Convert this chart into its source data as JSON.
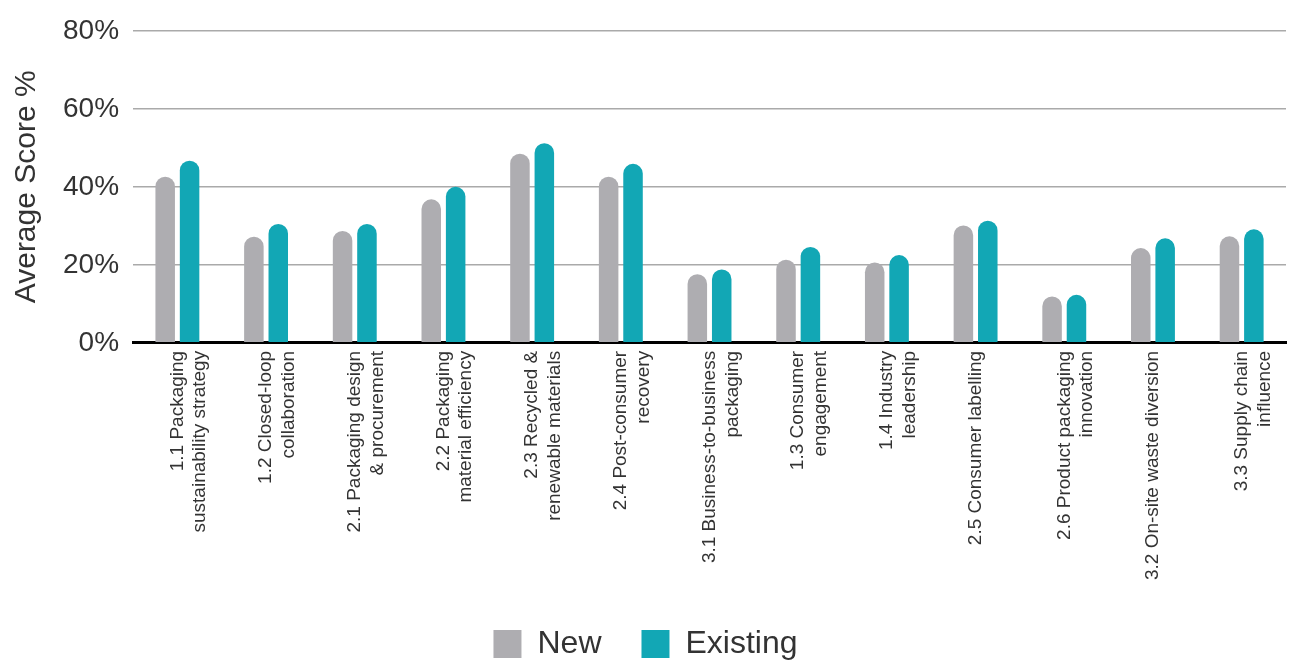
{
  "chart_data": {
    "type": "bar",
    "ylabel": "Average Score %",
    "categories": [
      "1.1 Packaging\nsustainability strategy",
      "1.2 Closed-loop\ncollaboration",
      "2.1 Packaging design\n& procurement",
      "2.2 Packaging\nmaterial efficiency",
      "2.3 Recycled &\nrenewable materials",
      "2.4 Post-consumer\nrecovery",
      "3.1 Business-to-business\npackaging",
      "1.3 Consumer\nengagement",
      "1.4 Industry\nleadership",
      "2.5 Consumer labelling",
      "2.6 Product packaging\ninnovation",
      "3.2 On-site waste diversion",
      "3.3 Supply chain\ninfluence"
    ],
    "series": [
      {
        "name": "New",
        "color": "#aeadb1",
        "values": [
          42.6,
          27.2,
          28.7,
          36.8,
          48.5,
          42.6,
          17.6,
          21.3,
          20.6,
          30.1,
          11.9,
          24.3,
          27.3
        ]
      },
      {
        "name": "Existing",
        "color": "#12a7b5",
        "values": [
          46.7,
          30.5,
          30.5,
          40.0,
          51.2,
          45.9,
          18.8,
          24.6,
          22.5,
          31.3,
          12.3,
          26.8,
          29.1
        ]
      }
    ],
    "ylim": [
      0,
      80
    ],
    "yticks": [
      {
        "value": 0,
        "label": "0%"
      },
      {
        "value": 20,
        "label": "20%"
      },
      {
        "value": 40,
        "label": "40%"
      },
      {
        "value": 60,
        "label": "60%"
      },
      {
        "value": 80,
        "label": "80%"
      }
    ],
    "grid": "y",
    "legend": "bottom"
  }
}
